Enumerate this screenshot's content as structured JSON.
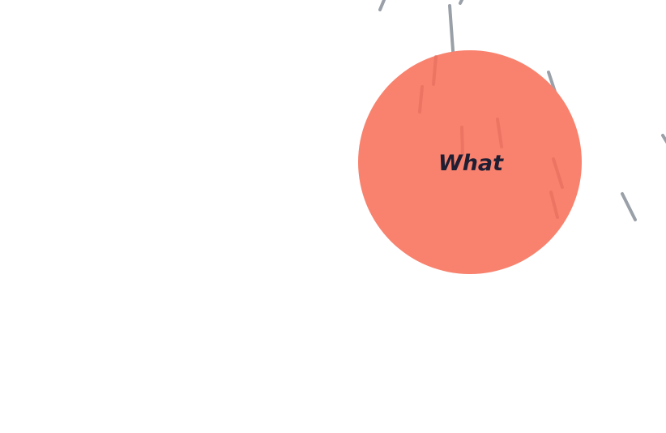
{
  "scene": {
    "circle_label": "What",
    "colors": {
      "background": "#ffffff",
      "circle_fill": "#f8826e",
      "label_text": "#1f1e33",
      "rain_stroke": "#9aa0a8",
      "rain_on_circle": "#e36a5a"
    }
  }
}
